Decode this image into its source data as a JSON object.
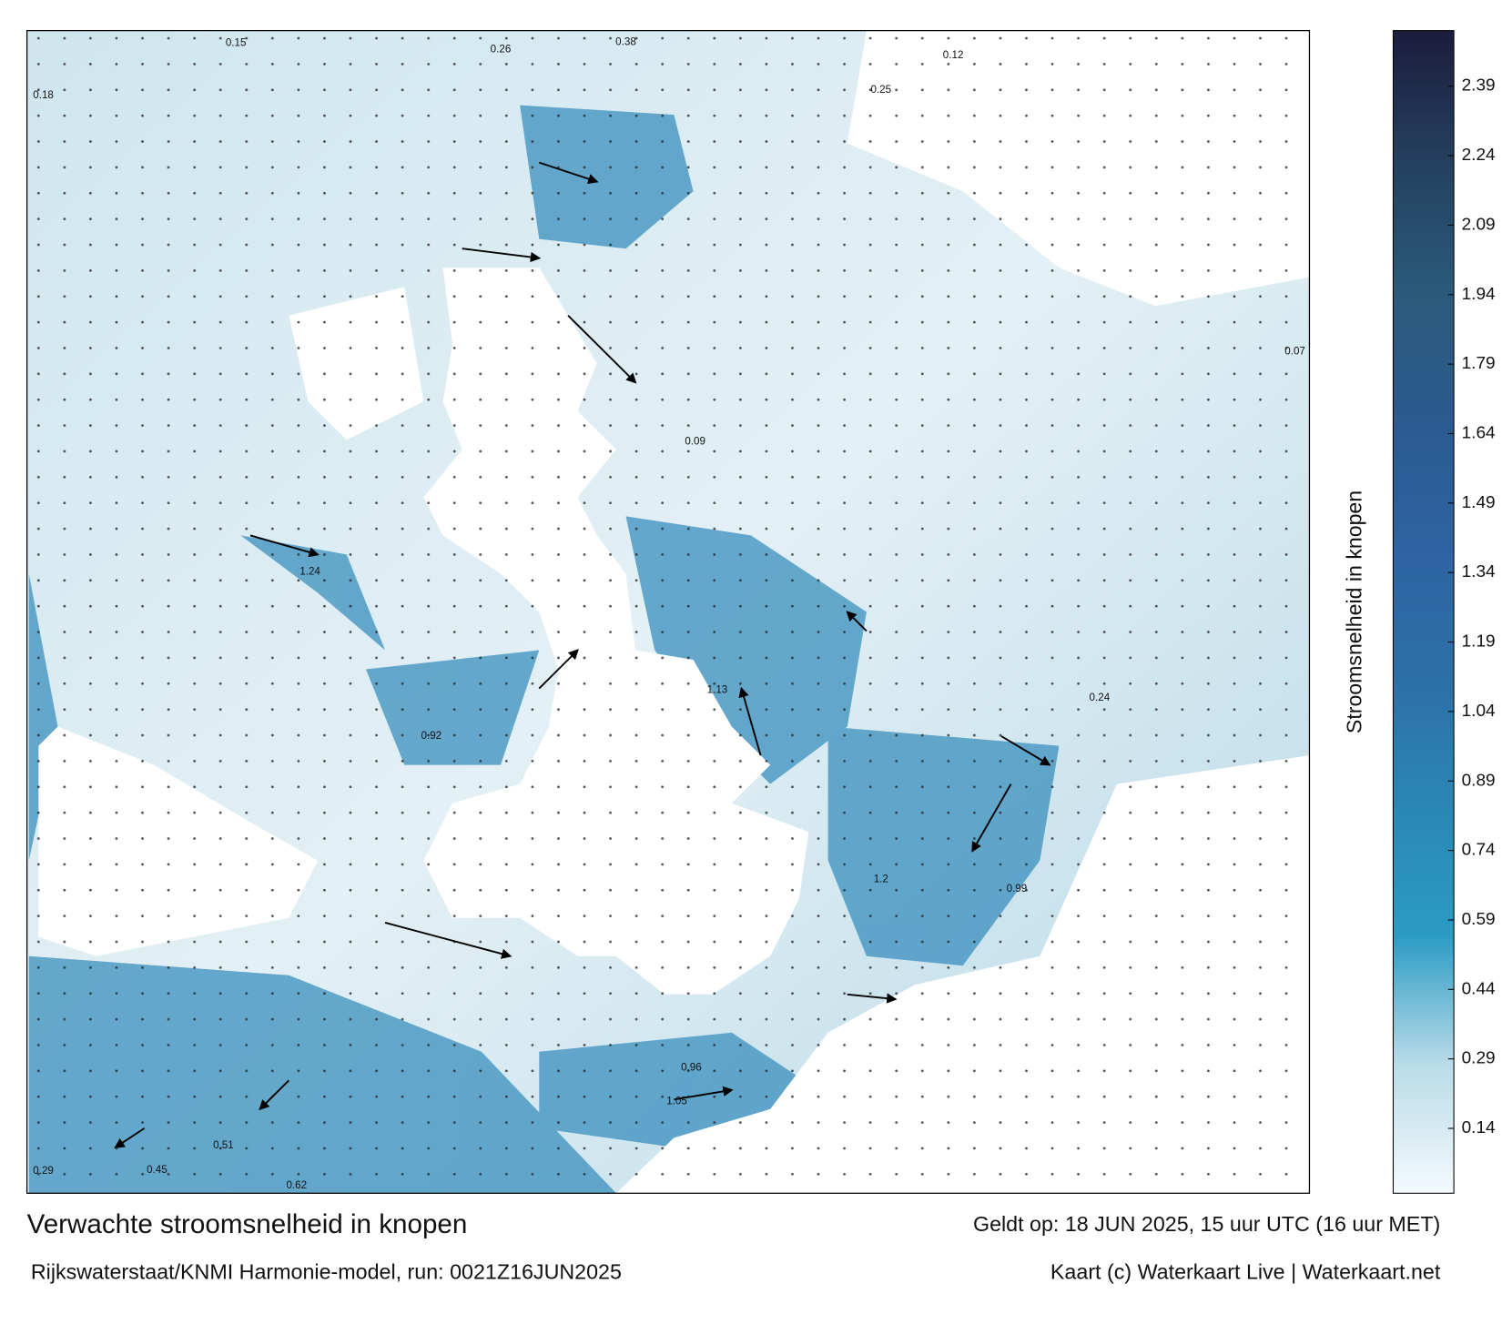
{
  "title": "Verwachte stroomsnelheid in knopen",
  "subtitle": "Rijkswaterstaat/KNMI Harmonie-model, run: 0021Z16JUN2025",
  "valid_time": "Geldt op: 18 JUN 2025, 15 uur UTC (16 uur MET)",
  "credit": "Kaart (c) Waterkaart Live | Waterkaart.net",
  "colorbar": {
    "label": "Stroomsnelheid in knopen",
    "lim": [
      0,
      2.51
    ],
    "ticks": [
      0.14,
      0.29,
      0.44,
      0.59,
      0.74,
      0.89,
      1.04,
      1.19,
      1.34,
      1.49,
      1.64,
      1.79,
      1.94,
      2.09,
      2.24,
      2.39
    ],
    "colors": [
      "#f4fafc",
      "#b9dbe8",
      "#2a9bc4",
      "#2b86b5",
      "#2c6fa8",
      "#2e63a3",
      "#2a5a8e",
      "#2a5a7a",
      "#24405e",
      "#1c1c3c"
    ]
  },
  "map_labels": [
    0.15,
    0.18,
    0.26,
    0.38,
    0.12,
    0.25,
    1.13,
    1.24,
    0.92,
    1.2,
    0.96,
    1.05,
    0.45,
    0.29,
    0.62,
    0.99,
    0.09,
    0.07,
    0.24,
    0.51
  ]
}
